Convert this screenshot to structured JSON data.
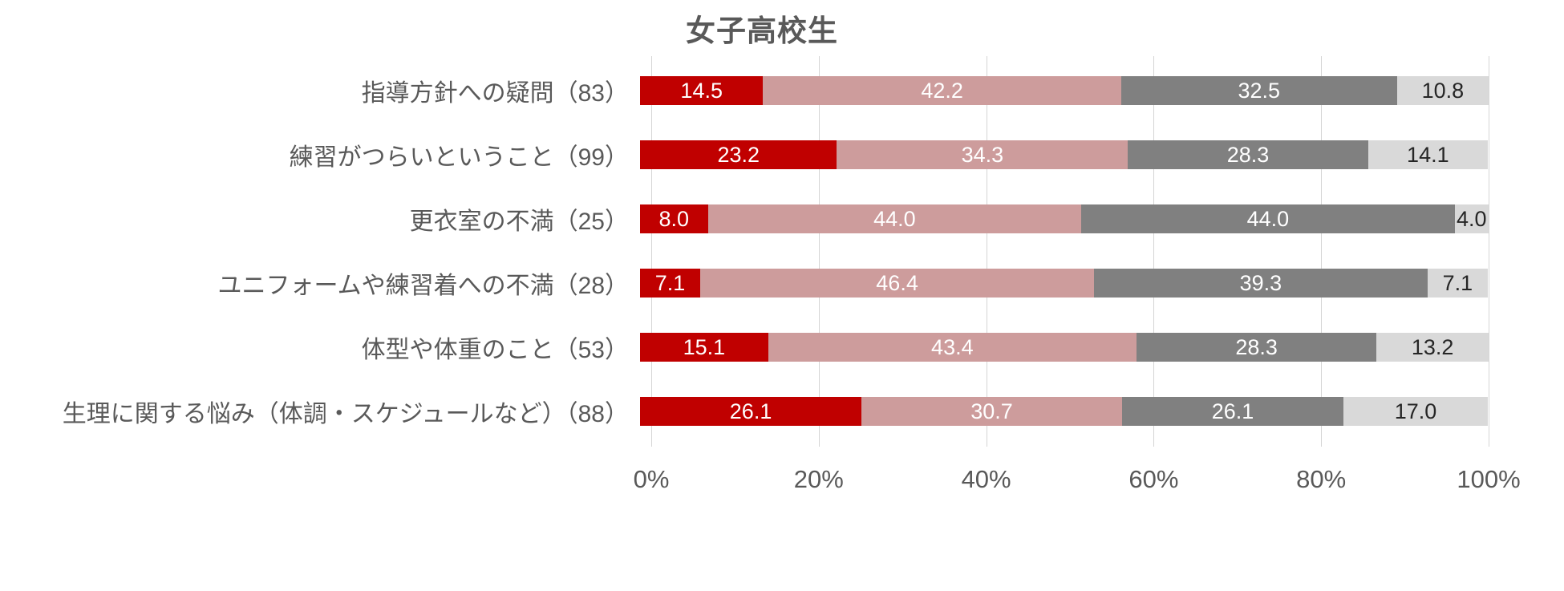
{
  "chart": {
    "title": "女子高校生"
  },
  "chart_data": {
    "type": "bar",
    "orientation": "horizontal",
    "stacked": true,
    "title": "女子高校生",
    "categories": [
      "指導方針への疑問（83）",
      "練習がつらいということ（99）",
      "更衣室の不満（25）",
      "ユニフォームや練習着への不満（28）",
      "体型や体重のこと（53）",
      "生理に関する悩み（体調・スケジュールなど）（88）"
    ],
    "series": [
      {
        "name": "segment-1-dark-red",
        "color": "#c00000",
        "label_color": "#ffffff",
        "values": [
          14.5,
          23.2,
          8.0,
          7.1,
          15.1,
          26.1
        ]
      },
      {
        "name": "segment-2-rose-pink",
        "color": "#cd9c9c",
        "label_color": "#ffffff",
        "values": [
          42.2,
          34.3,
          44.0,
          46.4,
          43.4,
          30.7
        ]
      },
      {
        "name": "segment-3-dark-gray",
        "color": "#808080",
        "label_color": "#ffffff",
        "values": [
          32.5,
          28.3,
          44.0,
          39.3,
          28.3,
          26.1
        ]
      },
      {
        "name": "segment-4-light-gray",
        "color": "#d9d9d9",
        "label_color": "#262626",
        "values": [
          10.8,
          14.1,
          4.0,
          7.1,
          13.2,
          17.0
        ]
      }
    ],
    "value_label_decimals": 1,
    "x_axis": {
      "range": [
        0,
        100
      ],
      "tick_step": 20,
      "ticks": [
        "0%",
        "20%",
        "40%",
        "60%",
        "80%",
        "100%"
      ]
    },
    "legend": "none",
    "grid": "vertical",
    "gridline_color": "#d5d5d5",
    "background": "#ffffff"
  }
}
